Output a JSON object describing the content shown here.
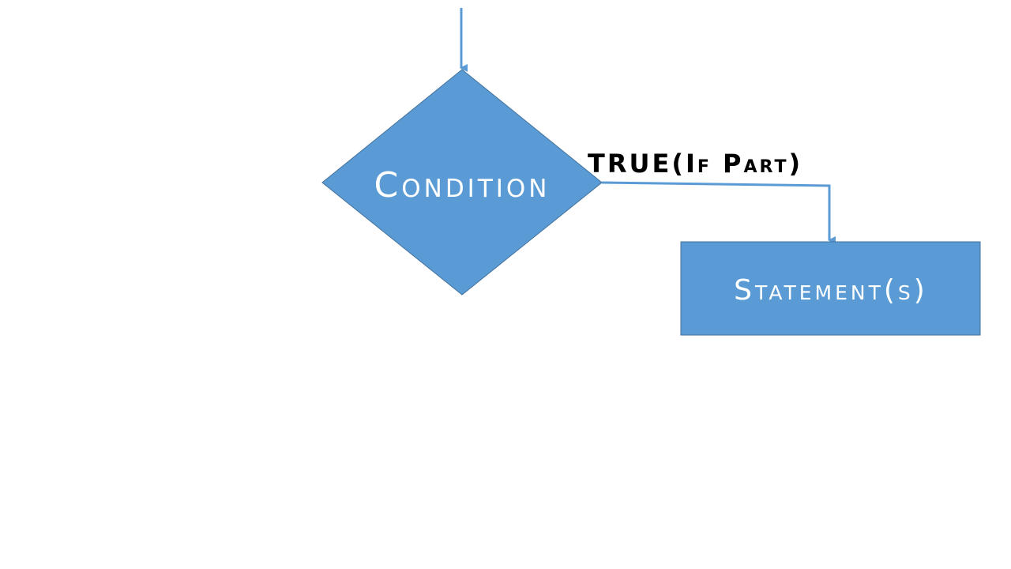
{
  "diagram": {
    "condition_label": "Condition",
    "branch_label": "TRUE(If Part)",
    "statement_label": "Statement(s)"
  },
  "colors": {
    "shape_fill": "#5B9BD5",
    "shape_stroke": "#41719C",
    "arrow": "#5B9BD5",
    "shape_text": "#FFFFFF",
    "branch_text": "#000000"
  }
}
